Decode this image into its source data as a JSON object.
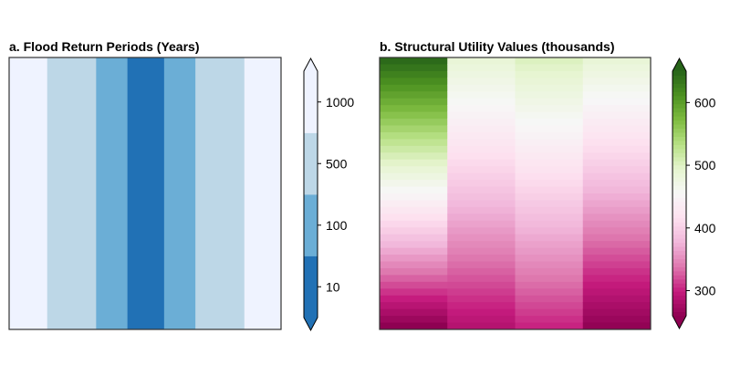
{
  "chart_data": [
    {
      "type": "heatmap",
      "title": "a. Flood Return Periods (Years)",
      "xlabel": "",
      "ylabel": "",
      "columns": [
        {
          "value": 1000,
          "level": 3
        },
        {
          "value": 500,
          "level": 2
        },
        {
          "value": 100,
          "level": 1
        },
        {
          "value": 10,
          "level": 0
        },
        {
          "value": 100,
          "level": 1
        },
        {
          "value": 500,
          "level": 2
        },
        {
          "value": 1000,
          "level": 3
        }
      ],
      "colorbar": {
        "ticks": [
          "10",
          "100",
          "500",
          "1000"
        ],
        "levels": [
          "#2171b5",
          "#6baed6",
          "#bdd7e7",
          "#eff3ff"
        ],
        "extend": "both"
      },
      "grid": false,
      "legend": "colorbar right"
    },
    {
      "type": "heatmap",
      "title": "b. Structural Utility Values (thousands)",
      "xlabel": "",
      "ylabel": "",
      "columns": [
        {
          "top": 650,
          "bottom": 255
        },
        {
          "top": 490,
          "bottom": 285
        },
        {
          "top": 505,
          "bottom": 300
        },
        {
          "top": 490,
          "bottom": 260
        }
      ],
      "colorbar": {
        "ticks": [
          "300",
          "400",
          "500",
          "600"
        ],
        "range": [
          260,
          650
        ],
        "colormap": "PiYG",
        "extend": "both"
      },
      "grid": false,
      "legend": "colorbar right"
    }
  ]
}
